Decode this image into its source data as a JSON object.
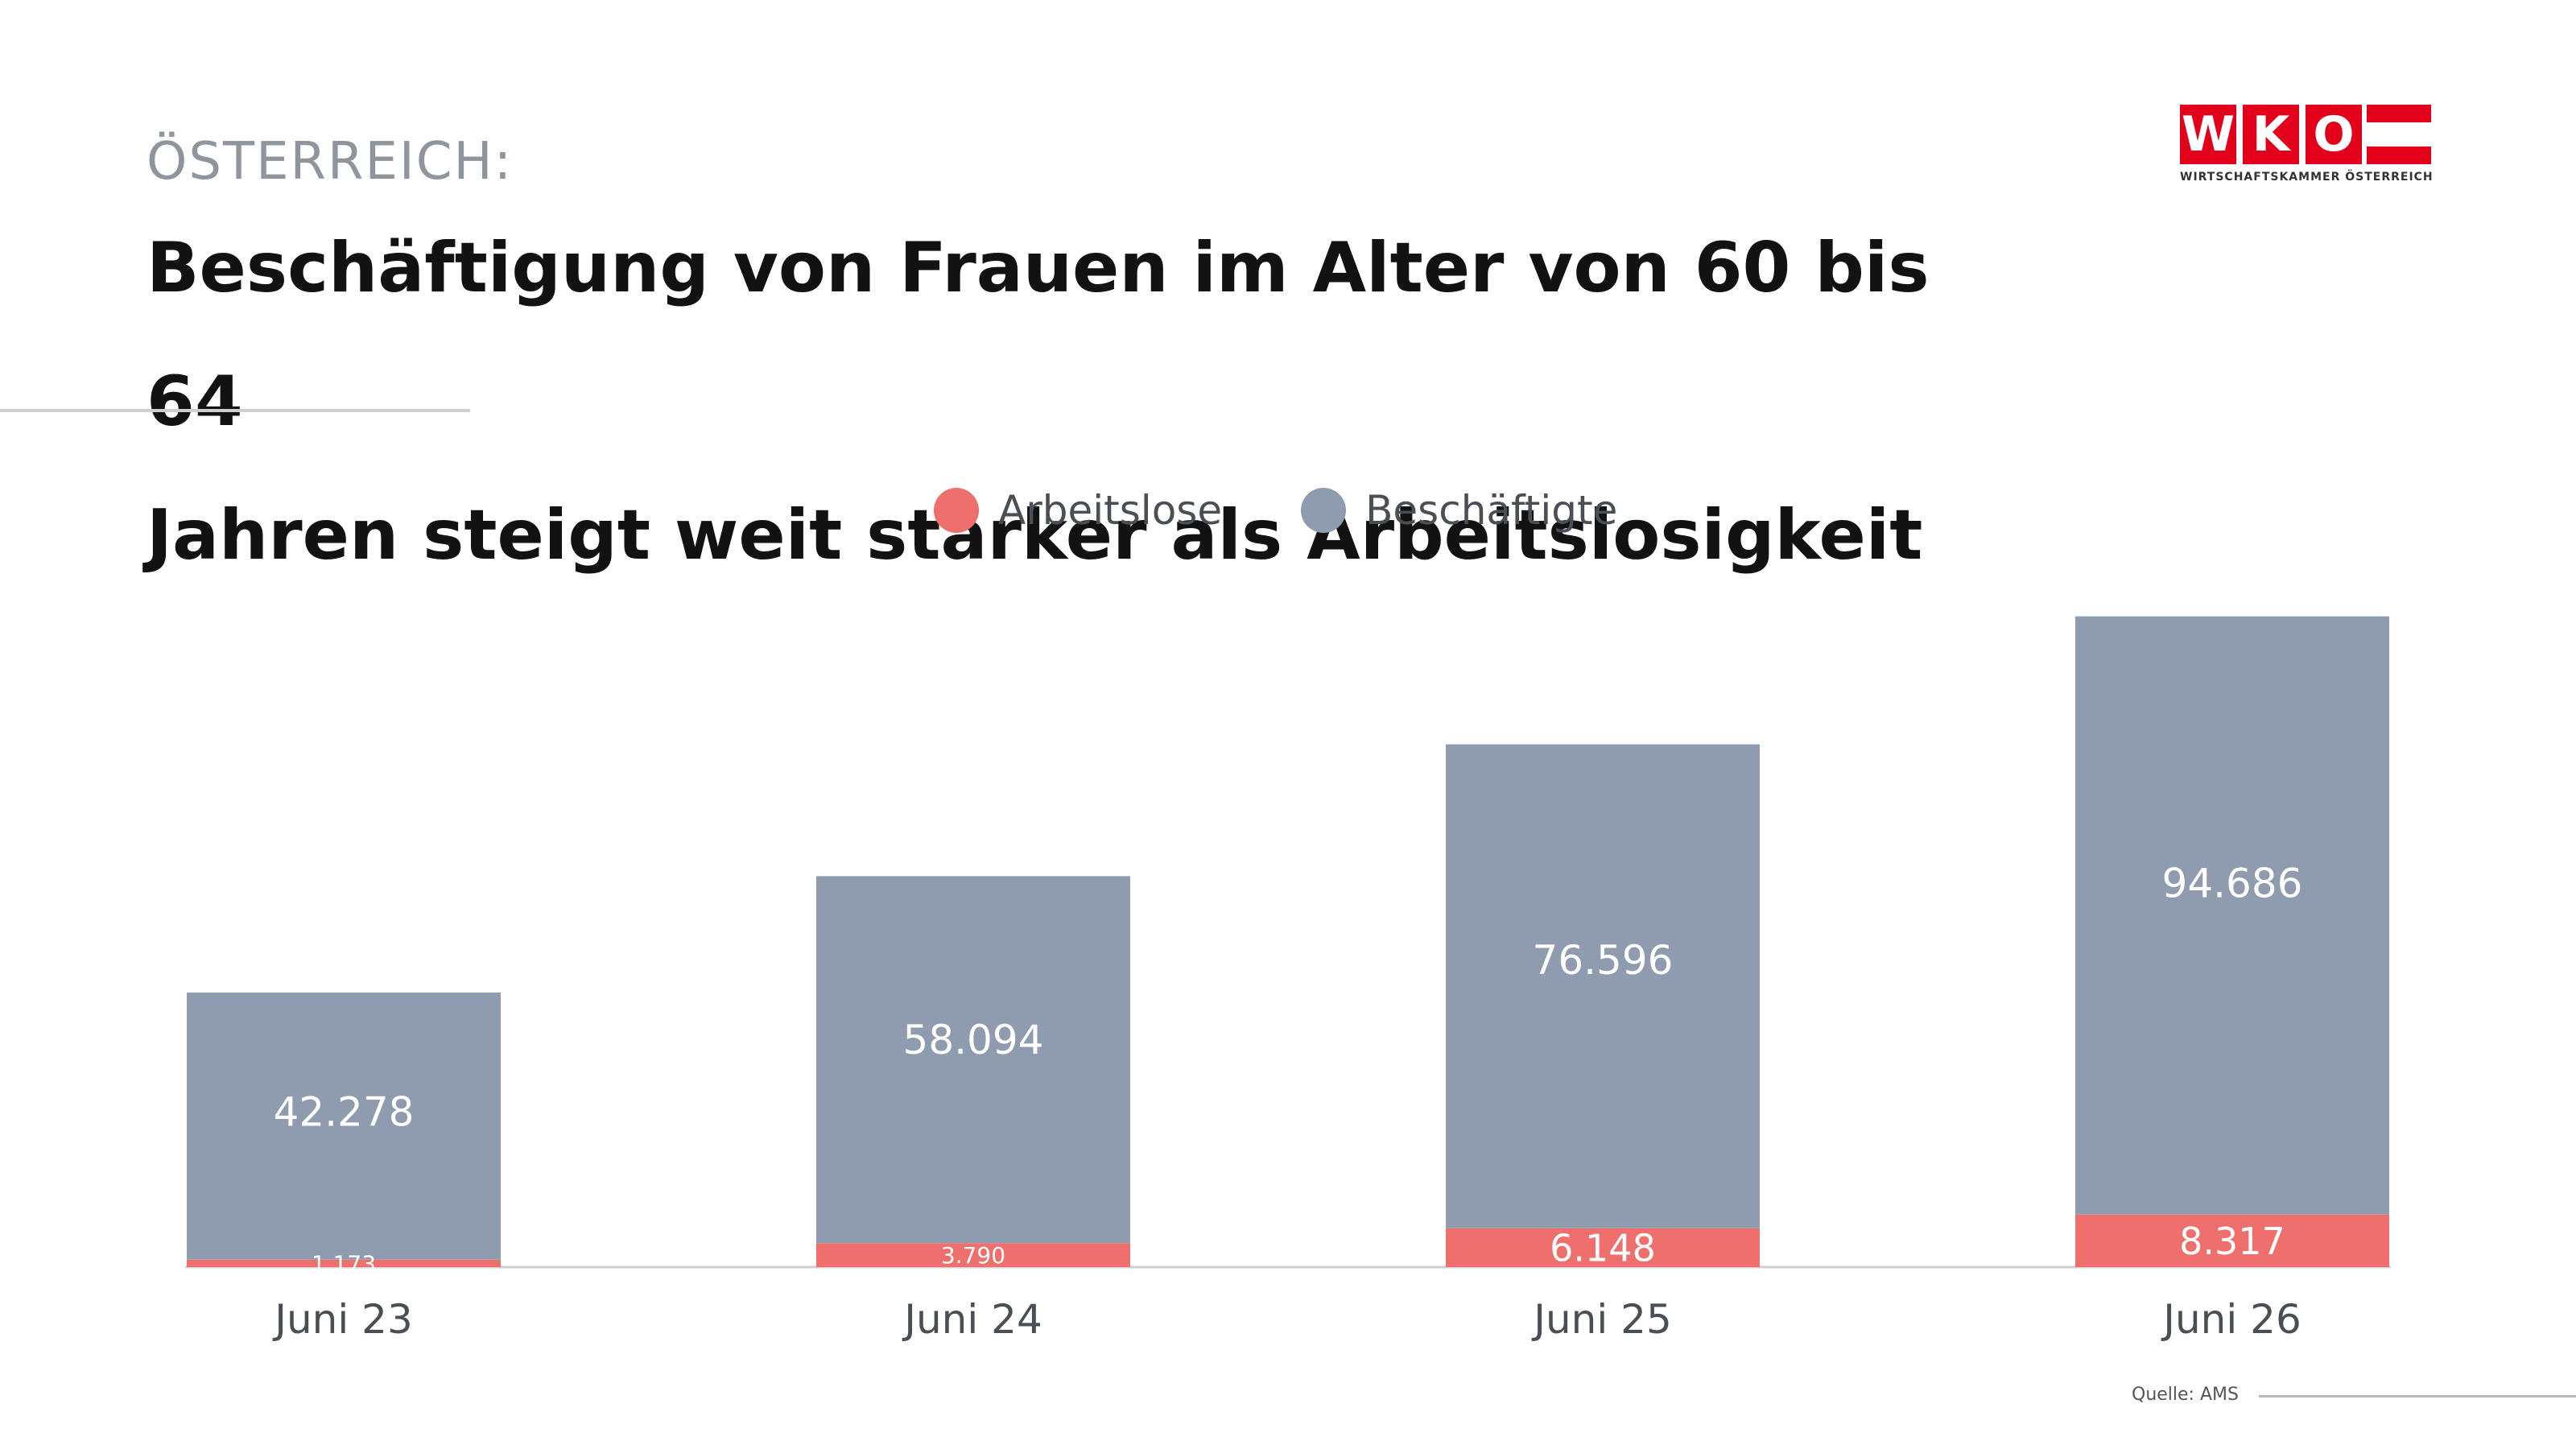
{
  "header": {
    "kicker": "ÖSTERREICH:",
    "title_line1": "Beschäftigung von Frauen im Alter von 60 bis 64",
    "title_line2": "Jahren steigt weit stärker als Arbeitslosigkeit"
  },
  "logo": {
    "letters": [
      "W",
      "K",
      "O"
    ],
    "subtitle": "WIRTSCHAFTSKAMMER ÖSTERREICH",
    "color": "#e2001a"
  },
  "legend": {
    "items": [
      {
        "label": "Arbeitslose",
        "color": "#ee6f6b"
      },
      {
        "label": "Beschäftigte",
        "color": "#8f9cb0"
      }
    ]
  },
  "chart_data": {
    "type": "bar",
    "stacked": true,
    "categories": [
      "Juni 23",
      "Juni 24",
      "Juni 25",
      "Juni 26"
    ],
    "series": [
      {
        "name": "Arbeitslose",
        "color": "#ee6f6b",
        "values": [
          1173,
          3790,
          6148,
          8317
        ],
        "labels": [
          "1.173",
          "3.790",
          "6.148",
          "8.317"
        ]
      },
      {
        "name": "Beschäftigte",
        "color": "#8f9cb0",
        "values": [
          42278,
          58094,
          76596,
          94686
        ],
        "labels": [
          "42.278",
          "58.094",
          "76.596",
          "94.686"
        ]
      }
    ],
    "title": "Beschäftigung von Frauen im Alter von 60 bis 64 Jahren steigt weit stärker als Arbeitslosigkeit",
    "xlabel": "",
    "ylabel": "",
    "ylim": [
      0,
      105000
    ],
    "grid": false,
    "legend_position": "top-center"
  },
  "footer": {
    "source": "Quelle: AMS"
  }
}
